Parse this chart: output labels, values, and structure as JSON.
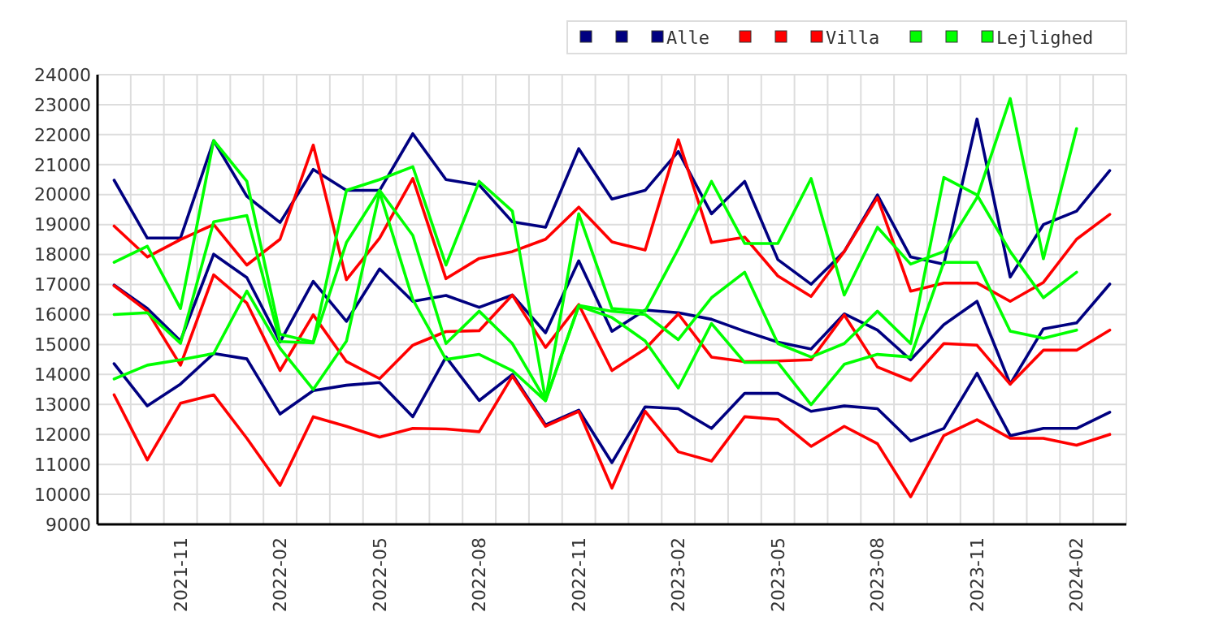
{
  "chart_data": {
    "type": "line",
    "categories": [
      null,
      null,
      "2021-11",
      null,
      null,
      "2022-02",
      null,
      null,
      "2022-05",
      null,
      null,
      "2022-08",
      null,
      null,
      "2022-11",
      null,
      null,
      "2023-02",
      null,
      null,
      "2023-05",
      null,
      null,
      "2023-08",
      null,
      null,
      "2023-11",
      null,
      null,
      "2024-02",
      null
    ],
    "ylim": [
      9000,
      24000
    ],
    "yticks": [
      9000,
      10000,
      11000,
      12000,
      13000,
      14000,
      15000,
      16000,
      17000,
      18000,
      19000,
      20000,
      21000,
      22000,
      23000,
      24000
    ],
    "grid": true,
    "legend": "top right",
    "marker": "none",
    "line_style": "solid",
    "series": [
      {
        "color": "#000080",
        "values": [
          20480,
          18550,
          18550,
          21800,
          19940,
          19070,
          20840,
          20140,
          20140,
          22030,
          20500,
          20320,
          19090,
          18910,
          21530,
          19850,
          20140,
          21440,
          19360,
          20440,
          17830,
          17010,
          18100,
          19990,
          17920,
          17680,
          22520,
          17250,
          19000,
          19450,
          20800
        ]
      },
      {
        "color": "#000080",
        "values": [
          16980,
          16200,
          15120,
          18010,
          17230,
          15080,
          17105,
          15770,
          17520,
          16440,
          16635,
          16240,
          16650,
          15390,
          17790,
          15440,
          16150,
          16060,
          15840,
          15440,
          15080,
          14850,
          16020,
          15480,
          14490,
          15660,
          16440,
          13680,
          15520,
          15720,
          17015
        ]
      },
      {
        "name": "Alle",
        "color": "#000080",
        "values": [
          14360,
          12950,
          13680,
          14700,
          14520,
          12680,
          13460,
          13640,
          13730,
          12590,
          14580,
          13130,
          14000,
          12320,
          12810,
          11060,
          12920,
          12860,
          12200,
          13370,
          13370,
          12770,
          12950,
          12860,
          11780,
          12200,
          14040,
          11960,
          12200,
          12200,
          12740
        ]
      },
      {
        "color": "#ff0000",
        "values": [
          18950,
          17920,
          18500,
          19000,
          17650,
          18510,
          21650,
          17160,
          18550,
          20540,
          17195,
          17870,
          18100,
          18510,
          19580,
          18420,
          18150,
          21830,
          18400,
          18580,
          17285,
          16600,
          18100,
          19900,
          16780,
          17050,
          17050,
          16440,
          17070,
          18510,
          19340
        ]
      },
      {
        "color": "#ff0000",
        "values": [
          16960,
          16110,
          14310,
          17320,
          16380,
          14130,
          15990,
          14430,
          13860,
          14975,
          15430,
          15460,
          16650,
          14900,
          16330,
          14130,
          14850,
          16020,
          14580,
          14430,
          14450,
          14490,
          15985,
          14250,
          13800,
          15030,
          14975,
          13675,
          14810,
          14810,
          15480
        ]
      },
      {
        "name": "Villa",
        "color": "#ff0000",
        "values": [
          13320,
          11150,
          13040,
          13320,
          11870,
          10300,
          12590,
          12270,
          11910,
          12200,
          12180,
          12090,
          13945,
          12270,
          12770,
          10210,
          12770,
          11420,
          11110,
          12590,
          12500,
          11600,
          12270,
          11690,
          9920,
          11960,
          12490,
          11870,
          11870,
          11640,
          12000
        ]
      },
      {
        "color": "#00ff00",
        "values": [
          17740,
          18280,
          16200,
          21800,
          20440,
          15340,
          15080,
          20140,
          20500,
          20930,
          17650,
          20440,
          19450,
          13150,
          19360,
          16200,
          16110,
          18190,
          20440,
          18370,
          18370,
          20535,
          16650,
          18910,
          17680,
          18100,
          19900,
          23205,
          17860,
          22200,
          null
        ]
      },
      {
        "color": "#00ff00",
        "values": [
          16000,
          16060,
          15040,
          19090,
          19300,
          15100,
          15050,
          18400,
          20140,
          18640,
          15030,
          16110,
          15030,
          13135,
          16300,
          16110,
          16000,
          15160,
          16560,
          17410,
          15030,
          14580,
          15030,
          16110,
          15030,
          20570,
          19990,
          18100,
          16560,
          17410,
          null
        ]
      },
      {
        "name": "Lejlighed",
        "color": "#00ff00",
        "values": [
          13850,
          14310,
          14490,
          14700,
          16780,
          14870,
          13500,
          15110,
          20080,
          16500,
          14500,
          14670,
          14130,
          13120,
          16280,
          15900,
          15120,
          13550,
          15700,
          14400,
          14400,
          12990,
          14340,
          14670,
          14580,
          17740,
          17740,
          15445,
          15210,
          15480,
          null
        ]
      }
    ]
  }
}
